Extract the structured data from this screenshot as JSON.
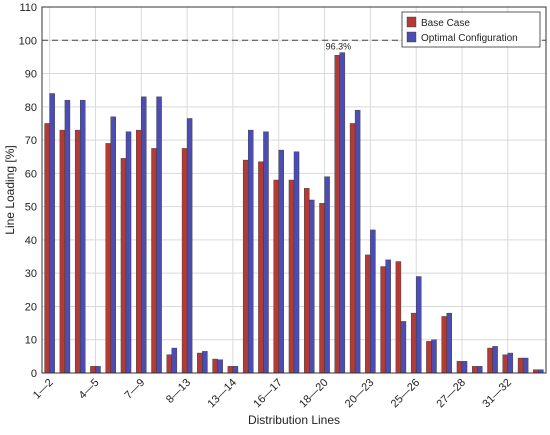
{
  "chart_data": {
    "type": "bar",
    "x_label": "Distribution Lines",
    "y_label": "Line Loading [%]",
    "categories": [
      "1—2",
      null,
      null,
      "4—5",
      null,
      null,
      "7—9",
      null,
      null,
      "8—13",
      null,
      null,
      "13—14",
      null,
      null,
      "16—17",
      null,
      null,
      "18—20",
      null,
      null,
      "20—23",
      null,
      null,
      "25—26",
      null,
      null,
      "27—28",
      null,
      null,
      "31—32",
      null,
      null
    ],
    "series": [
      {
        "name": "Base Case",
        "color": "#b23c35",
        "values": [
          75,
          73,
          73,
          2,
          69,
          64.5,
          73,
          67.5,
          5.5,
          67.5,
          6,
          4.2,
          2,
          64,
          63.5,
          58,
          58,
          55.5,
          51,
          95.5,
          75,
          35.5,
          32,
          33.5,
          18,
          9.5,
          17,
          3.5,
          2,
          7.5,
          5.5,
          4.5,
          1
        ]
      },
      {
        "name": "Optimal Configuration",
        "color": "#4b4db3",
        "values": [
          84,
          82,
          82,
          2,
          77,
          72.5,
          83,
          83,
          7.5,
          76.5,
          6.5,
          4,
          2,
          73,
          72.5,
          67,
          66.5,
          52,
          59,
          96.3,
          79,
          43,
          34,
          15.5,
          29,
          10,
          18,
          3.5,
          2,
          8,
          6,
          4.5,
          1
        ],
        "value_labels": [
          null,
          null,
          null,
          null,
          null,
          null,
          null,
          null,
          null,
          null,
          null,
          null,
          null,
          null,
          null,
          null,
          null,
          null,
          null,
          "96.3%",
          null,
          null,
          null,
          null,
          null,
          null,
          null,
          null,
          null,
          null,
          null,
          null,
          null
        ]
      }
    ],
    "ylim": [
      0,
      110
    ],
    "yticks": [
      0,
      10,
      20,
      30,
      40,
      50,
      60,
      70,
      80,
      90,
      100,
      110
    ],
    "reference_line": 100,
    "grid": true,
    "legend": "upper right"
  }
}
